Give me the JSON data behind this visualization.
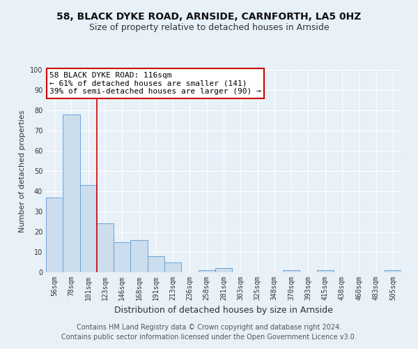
{
  "title1": "58, BLACK DYKE ROAD, ARNSIDE, CARNFORTH, LA5 0HZ",
  "title2": "Size of property relative to detached houses in Arnside",
  "xlabel": "Distribution of detached houses by size in Arnside",
  "ylabel": "Number of detached properties",
  "categories": [
    "56sqm",
    "78sqm",
    "101sqm",
    "123sqm",
    "146sqm",
    "168sqm",
    "191sqm",
    "213sqm",
    "236sqm",
    "258sqm",
    "281sqm",
    "303sqm",
    "325sqm",
    "348sqm",
    "370sqm",
    "393sqm",
    "415sqm",
    "438sqm",
    "460sqm",
    "483sqm",
    "505sqm"
  ],
  "values": [
    37,
    78,
    43,
    24,
    15,
    16,
    8,
    5,
    0,
    1,
    2,
    0,
    0,
    0,
    1,
    0,
    1,
    0,
    0,
    0,
    1
  ],
  "bar_color": "#ccdded",
  "bar_edge_color": "#5b9bd5",
  "vline_x": 2.5,
  "vline_color": "#cc0000",
  "annotation_box_text": "58 BLACK DYKE ROAD: 116sqm\n← 61% of detached houses are smaller (141)\n39% of semi-detached houses are larger (90) →",
  "annotation_box_color": "#cc0000",
  "ylim": [
    0,
    100
  ],
  "yticks": [
    0,
    10,
    20,
    30,
    40,
    50,
    60,
    70,
    80,
    90,
    100
  ],
  "bg_color": "#e8f0f8",
  "plot_bg_color": "#e8f0f8",
  "grid_color": "#ffffff",
  "footer": "Contains HM Land Registry data © Crown copyright and database right 2024.\nContains public sector information licensed under the Open Government Licence v3.0.",
  "title1_fontsize": 10,
  "title2_fontsize": 9,
  "xlabel_fontsize": 9,
  "ylabel_fontsize": 8,
  "tick_fontsize": 7,
  "footer_fontsize": 7,
  "annot_fontsize": 8
}
